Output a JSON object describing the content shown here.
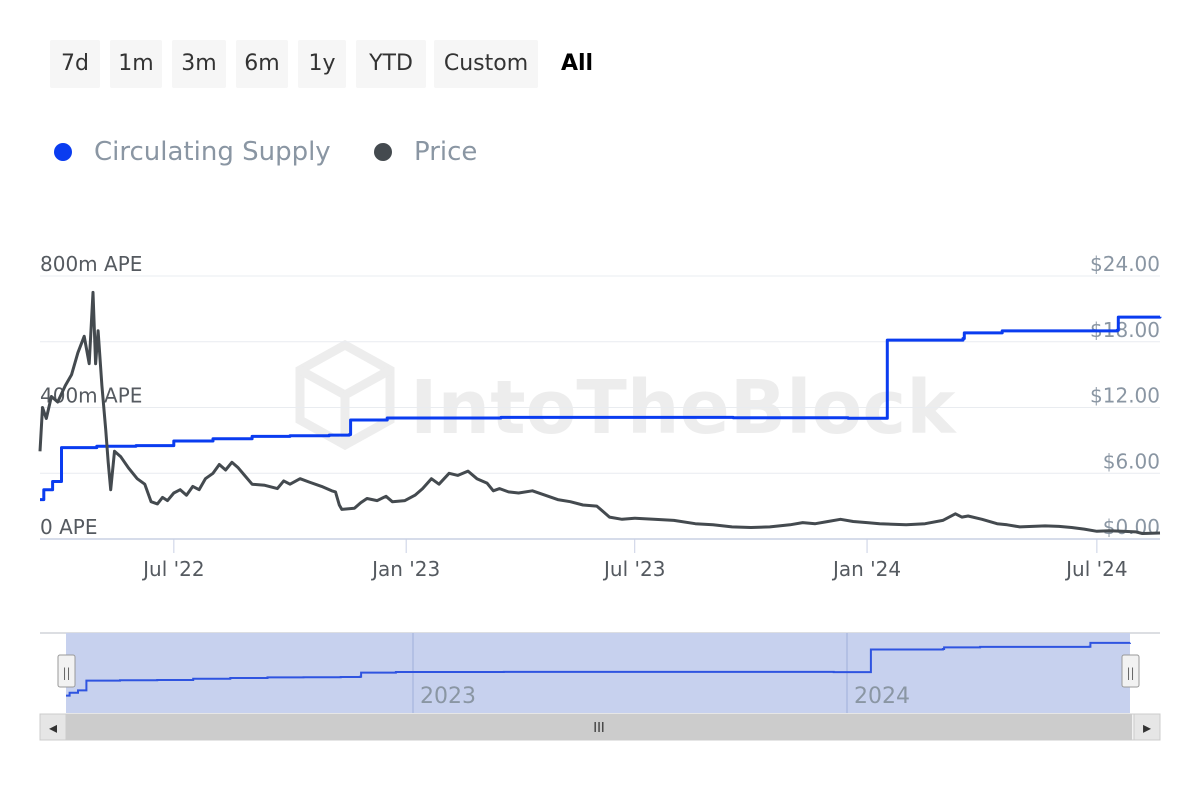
{
  "range_selector": {
    "buttons": [
      "7d",
      "1m",
      "3m",
      "6m",
      "1y",
      "YTD",
      "Custom",
      "All"
    ],
    "active": "All"
  },
  "legend": {
    "items": [
      {
        "label": "Circulating Supply",
        "color": "#0a3cf0"
      },
      {
        "label": "Price",
        "color": "#444a4f"
      }
    ]
  },
  "watermark": "IntoTheBlock",
  "chart_data": {
    "type": "line",
    "x_range": [
      "2022-03-17",
      "2024-08-20"
    ],
    "y_left": {
      "ticks": [
        "0 APE",
        "400m APE",
        "800m APE"
      ],
      "range": [
        0,
        800000000
      ]
    },
    "y_right": {
      "ticks": [
        "$0.00",
        "$6.00",
        "$12.00",
        "$18.00",
        "$24.00"
      ],
      "range": [
        0,
        24
      ]
    },
    "x_ticks": [
      "Jul '22",
      "Jan '23",
      "Jul '23",
      "Jan '24",
      "Jul '24"
    ],
    "grid": true,
    "series": [
      {
        "name": "Circulating Supply",
        "axis": "left",
        "color": "#0a3cf0",
        "step": true,
        "points": [
          [
            "2022-03-17",
            120000000
          ],
          [
            "2022-03-20",
            150000000
          ],
          [
            "2022-03-27",
            175000000
          ],
          [
            "2022-04-03",
            278000000
          ],
          [
            "2022-05-01",
            282000000
          ],
          [
            "2022-06-01",
            284000000
          ],
          [
            "2022-07-01",
            298000000
          ],
          [
            "2022-08-01",
            305000000
          ],
          [
            "2022-09-01",
            312000000
          ],
          [
            "2022-10-01",
            314000000
          ],
          [
            "2022-11-01",
            316000000
          ],
          [
            "2022-11-17",
            318000000
          ],
          [
            "2022-11-18",
            362000000
          ],
          [
            "2022-12-17",
            368000000
          ],
          [
            "2023-03-17",
            370000000
          ],
          [
            "2023-06-17",
            370000000
          ],
          [
            "2023-09-17",
            369000000
          ],
          [
            "2023-12-17",
            367000000
          ],
          [
            "2024-01-16",
            367000000
          ],
          [
            "2024-01-17",
            605000000
          ],
          [
            "2024-03-17",
            610000000
          ],
          [
            "2024-03-18",
            627000000
          ],
          [
            "2024-04-17",
            633000000
          ],
          [
            "2024-06-17",
            633000000
          ],
          [
            "2024-07-17",
            635000000
          ],
          [
            "2024-07-18",
            675000000
          ],
          [
            "2024-08-20",
            676000000
          ]
        ]
      },
      {
        "name": "Price",
        "axis": "right",
        "color": "#444a4f",
        "points": [
          [
            "2022-03-17",
            8.0
          ],
          [
            "2022-03-19",
            12.0
          ],
          [
            "2022-03-22",
            11.0
          ],
          [
            "2022-03-26",
            13.0
          ],
          [
            "2022-03-31",
            12.5
          ],
          [
            "2022-04-06",
            14.0
          ],
          [
            "2022-04-11",
            15.0
          ],
          [
            "2022-04-16",
            17.0
          ],
          [
            "2022-04-21",
            18.5
          ],
          [
            "2022-04-25",
            16.0
          ],
          [
            "2022-04-28",
            22.5
          ],
          [
            "2022-04-30",
            16.0
          ],
          [
            "2022-05-02",
            19.0
          ],
          [
            "2022-05-05",
            14.0
          ],
          [
            "2022-05-08",
            10.0
          ],
          [
            "2022-05-10",
            7.0
          ],
          [
            "2022-05-12",
            4.5
          ],
          [
            "2022-05-15",
            8.0
          ],
          [
            "2022-05-20",
            7.5
          ],
          [
            "2022-05-26",
            6.5
          ],
          [
            "2022-06-02",
            5.5
          ],
          [
            "2022-06-08",
            5.0
          ],
          [
            "2022-06-13",
            3.4
          ],
          [
            "2022-06-18",
            3.2
          ],
          [
            "2022-06-22",
            3.8
          ],
          [
            "2022-06-26",
            3.5
          ],
          [
            "2022-07-01",
            4.2
          ],
          [
            "2022-07-06",
            4.5
          ],
          [
            "2022-07-11",
            4.0
          ],
          [
            "2022-07-16",
            4.8
          ],
          [
            "2022-07-21",
            4.5
          ],
          [
            "2022-07-26",
            5.5
          ],
          [
            "2022-08-01",
            6.0
          ],
          [
            "2022-08-06",
            6.8
          ],
          [
            "2022-08-11",
            6.3
          ],
          [
            "2022-08-16",
            7.0
          ],
          [
            "2022-08-21",
            6.5
          ],
          [
            "2022-08-26",
            5.8
          ],
          [
            "2022-09-01",
            5.0
          ],
          [
            "2022-09-11",
            4.9
          ],
          [
            "2022-09-21",
            4.6
          ],
          [
            "2022-09-26",
            5.3
          ],
          [
            "2022-10-01",
            5.0
          ],
          [
            "2022-10-09",
            5.5
          ],
          [
            "2022-10-16",
            5.2
          ],
          [
            "2022-10-26",
            4.8
          ],
          [
            "2022-11-03",
            4.4
          ],
          [
            "2022-11-06",
            4.3
          ],
          [
            "2022-11-09",
            3.1
          ],
          [
            "2022-11-11",
            2.7
          ],
          [
            "2022-11-21",
            2.8
          ],
          [
            "2022-11-26",
            3.3
          ],
          [
            "2022-12-01",
            3.7
          ],
          [
            "2022-12-09",
            3.5
          ],
          [
            "2022-12-16",
            3.9
          ],
          [
            "2022-12-21",
            3.4
          ],
          [
            "2022-12-31",
            3.5
          ],
          [
            "2023-01-08",
            4.0
          ],
          [
            "2023-01-14",
            4.6
          ],
          [
            "2023-01-21",
            5.5
          ],
          [
            "2023-01-27",
            5.0
          ],
          [
            "2023-02-04",
            6.0
          ],
          [
            "2023-02-11",
            5.8
          ],
          [
            "2023-02-19",
            6.2
          ],
          [
            "2023-02-26",
            5.5
          ],
          [
            "2023-03-06",
            5.1
          ],
          [
            "2023-03-11",
            4.4
          ],
          [
            "2023-03-16",
            4.6
          ],
          [
            "2023-03-23",
            4.3
          ],
          [
            "2023-03-31",
            4.2
          ],
          [
            "2023-04-11",
            4.4
          ],
          [
            "2023-04-21",
            4.0
          ],
          [
            "2023-05-01",
            3.6
          ],
          [
            "2023-05-11",
            3.4
          ],
          [
            "2023-05-21",
            3.1
          ],
          [
            "2023-06-01",
            3.0
          ],
          [
            "2023-06-06",
            2.5
          ],
          [
            "2023-06-11",
            2.0
          ],
          [
            "2023-06-21",
            1.8
          ],
          [
            "2023-07-01",
            1.9
          ],
          [
            "2023-07-16",
            1.8
          ],
          [
            "2023-08-01",
            1.7
          ],
          [
            "2023-08-18",
            1.4
          ],
          [
            "2023-09-01",
            1.3
          ],
          [
            "2023-09-16",
            1.1
          ],
          [
            "2023-10-01",
            1.05
          ],
          [
            "2023-10-16",
            1.1
          ],
          [
            "2023-11-01",
            1.3
          ],
          [
            "2023-11-11",
            1.5
          ],
          [
            "2023-11-21",
            1.4
          ],
          [
            "2023-12-01",
            1.6
          ],
          [
            "2023-12-11",
            1.8
          ],
          [
            "2023-12-21",
            1.6
          ],
          [
            "2024-01-01",
            1.5
          ],
          [
            "2024-01-11",
            1.4
          ],
          [
            "2024-01-21",
            1.35
          ],
          [
            "2024-02-01",
            1.3
          ],
          [
            "2024-02-16",
            1.4
          ],
          [
            "2024-03-01",
            1.7
          ],
          [
            "2024-03-11",
            2.3
          ],
          [
            "2024-03-16",
            2.0
          ],
          [
            "2024-03-21",
            2.1
          ],
          [
            "2024-04-01",
            1.8
          ],
          [
            "2024-04-13",
            1.4
          ],
          [
            "2024-04-21",
            1.3
          ],
          [
            "2024-05-01",
            1.1
          ],
          [
            "2024-05-21",
            1.2
          ],
          [
            "2024-06-01",
            1.15
          ],
          [
            "2024-06-11",
            1.05
          ],
          [
            "2024-06-21",
            0.9
          ],
          [
            "2024-07-01",
            0.7
          ],
          [
            "2024-07-11",
            0.75
          ],
          [
            "2024-07-21",
            0.7
          ],
          [
            "2024-08-01",
            0.65
          ],
          [
            "2024-08-06",
            0.5
          ],
          [
            "2024-08-20",
            0.55
          ]
        ]
      }
    ]
  },
  "navigator": {
    "x_labels": [
      "2023",
      "2024"
    ],
    "scrollbar_grip": "III",
    "left_arrow": "◂",
    "right_arrow": "▸",
    "handle_glyph": "||"
  }
}
